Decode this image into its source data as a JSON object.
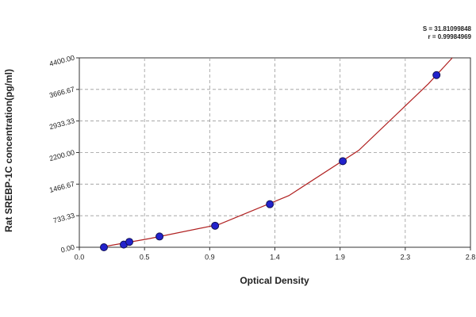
{
  "chart_data": {
    "type": "scatter",
    "annotations": [
      "S = 31.81099848",
      "r = 0.99984969"
    ],
    "xlabel": "Optical Density",
    "ylabel": "Rat  SREBP-1C concentration(pg/ml)",
    "series": [
      {
        "color": "#2222cc",
        "x": [
          0.176,
          0.318,
          0.358,
          0.574,
          0.972,
          1.364,
          1.886,
          2.557
        ],
        "values": [
          0,
          62.5,
          125,
          250,
          500,
          1000,
          2000,
          4000
        ]
      }
    ],
    "fit": {
      "color": "#b02020",
      "x": [
        0.15,
        0.5,
        1.0,
        1.5,
        2.0,
        2.5,
        2.67
      ],
      "values": [
        0,
        200,
        530,
        1200,
        2250,
        3800,
        4400
      ]
    },
    "xlim": [
      0,
      2.8
    ],
    "ylim": [
      0,
      4400
    ],
    "xticks": [
      {
        "value": 0,
        "label": "0.0"
      },
      {
        "value": 0.4667,
        "label": "0.5"
      },
      {
        "value": 0.9333,
        "label": "0.9"
      },
      {
        "value": 1.4,
        "label": "1.4"
      },
      {
        "value": 1.8667,
        "label": "1.9"
      },
      {
        "value": 2.3333,
        "label": "2.3"
      },
      {
        "value": 2.8,
        "label": "2.8"
      }
    ],
    "yticks": [
      {
        "value": 0,
        "label": "0.00"
      },
      {
        "value": 733.33,
        "label": "733.33"
      },
      {
        "value": 1466.67,
        "label": "1466.67"
      },
      {
        "value": 2200,
        "label": "2200.00"
      },
      {
        "value": 2933.33,
        "label": "2933.33"
      },
      {
        "value": 3666.67,
        "label": "3666.67"
      },
      {
        "value": 4400,
        "label": "4400.00"
      }
    ],
    "grid": true
  }
}
